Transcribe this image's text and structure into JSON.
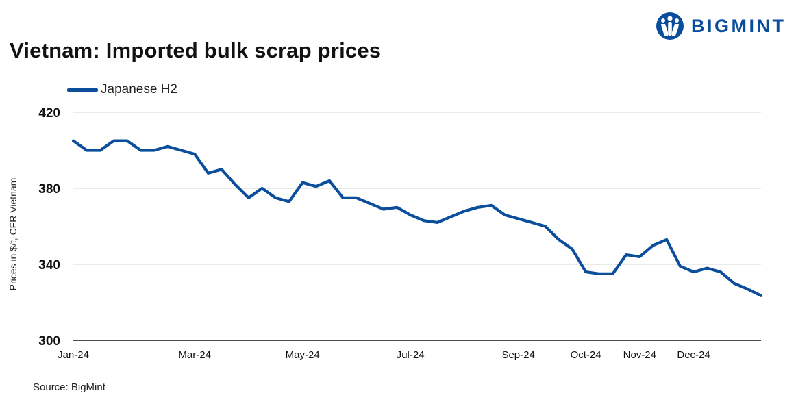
{
  "header": {
    "title": "Vietnam: Imported bulk scrap prices",
    "brand": "BIGMINT"
  },
  "footer": {
    "source": "Source: BigMint"
  },
  "colors": {
    "series": "#0b4f9c",
    "grid": "#d4d4d4",
    "axis": "#111111",
    "brand": "#0a4d9c"
  },
  "chart_data": {
    "type": "line",
    "title": "Vietnam: Imported bulk scrap prices",
    "xlabel": "",
    "ylabel": "Prices in $/t, CFR Vietnam",
    "ylim": [
      300,
      420
    ],
    "yticks": [
      300,
      340,
      380,
      420
    ],
    "grid": true,
    "legend_position": "top-left",
    "xticks": [
      {
        "label": "Jan-24",
        "index": 0
      },
      {
        "label": "Mar-24",
        "index": 9
      },
      {
        "label": "May-24",
        "index": 17
      },
      {
        "label": "Jul-24",
        "index": 25
      },
      {
        "label": "Sep-24",
        "index": 33
      },
      {
        "label": "Oct-24",
        "index": 38
      },
      {
        "label": "Nov-24",
        "index": 42
      },
      {
        "label": "Dec-24",
        "index": 46
      }
    ],
    "series": [
      {
        "name": "Japanese H2",
        "values": [
          405,
          400,
          400,
          405,
          405,
          400,
          400,
          402,
          400,
          398,
          388,
          390,
          382,
          375,
          380,
          375,
          373,
          383,
          381,
          384,
          375,
          375,
          372,
          369,
          370,
          366,
          363,
          362,
          365,
          368,
          370,
          371,
          366,
          364,
          362,
          360,
          353,
          348,
          336,
          335,
          335,
          345,
          344,
          350,
          353,
          339,
          336,
          338,
          336,
          330,
          327,
          323.5
        ]
      }
    ]
  }
}
